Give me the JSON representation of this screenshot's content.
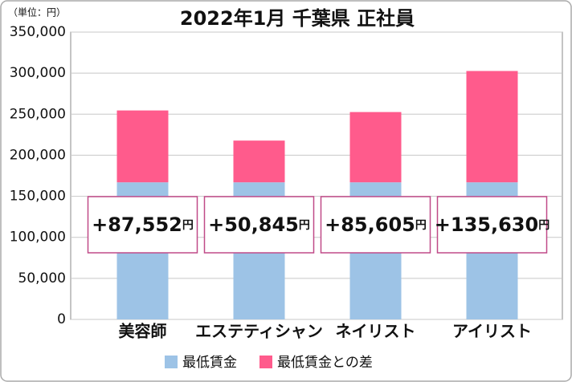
{
  "chart_data": {
    "type": "stacked_bar",
    "title": "2022年1月 千葉県 正社員",
    "unit": "（単位：円）",
    "categories": [
      "美容師",
      "エステティシャン",
      "ネイリスト",
      "アイリスト"
    ],
    "series": [
      {
        "name": "最低賃金",
        "color": "#9dc3e6",
        "values": [
          167000,
          167000,
          167000,
          167000
        ]
      },
      {
        "name": "最低賃金との差",
        "color": "#ff5b8c",
        "values": [
          87552,
          50845,
          85605,
          135630
        ],
        "value_labels": [
          "+87,552円",
          "+50,845円",
          "+85,605円",
          "+135,630円"
        ]
      }
    ],
    "ylim": [
      0,
      350000
    ],
    "yticks": [
      0,
      {
        "value": 50000,
        "label": "50,000"
      },
      {
        "value": 100000,
        "label": "100,000"
      },
      {
        "value": 150000,
        "label": "150,000"
      },
      {
        "value": 200000,
        "label": "200,000"
      },
      {
        "value": 250000,
        "label": "250,000"
      },
      {
        "value": 300000,
        "label": "300,000"
      },
      {
        "value": 350000,
        "label": "350,000"
      }
    ],
    "grid": true,
    "legend": "bottom"
  }
}
